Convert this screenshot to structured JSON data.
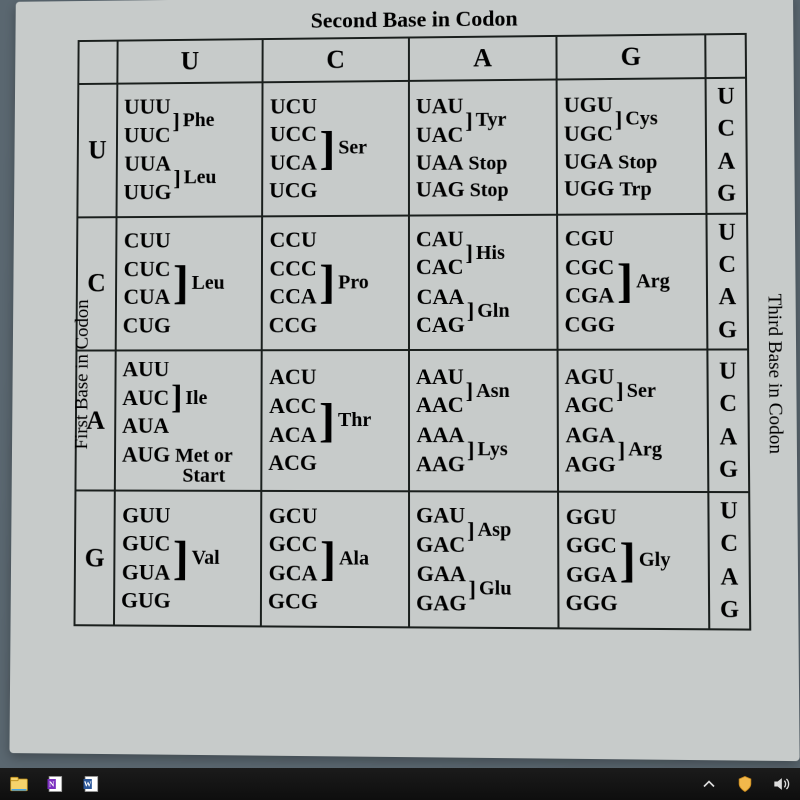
{
  "titles": {
    "top": "Second Base in Codon",
    "left": "First Base in Codon",
    "right": "Third Base in Codon"
  },
  "col_headers": [
    "U",
    "C",
    "A",
    "G"
  ],
  "row_headers": [
    "U",
    "C",
    "A",
    "G"
  ],
  "third_base": [
    "U",
    "C",
    "A",
    "G"
  ],
  "table_type": "genetic_codon_table",
  "colors": {
    "page_bg": "#c7cbca",
    "desktop_bg": "#5a6770",
    "border": "#1a1f1d",
    "text": "#000000",
    "taskbar": "#111111"
  },
  "font": {
    "family": "Times New Roman",
    "header_size_pt": 20,
    "codon_size_pt": 16,
    "title_size_pt": 16
  },
  "cells": {
    "U": {
      "U": {
        "groups": [
          {
            "codons": [
              "UUU",
              "UUC"
            ],
            "amino": "Phe"
          },
          {
            "codons": [
              "UUA",
              "UUG"
            ],
            "amino": "Leu"
          }
        ]
      },
      "C": {
        "groups": [
          {
            "codons": [
              "UCU",
              "UCC",
              "UCA",
              "UCG"
            ],
            "amino": "Ser"
          }
        ]
      },
      "A": {
        "groups": [
          {
            "codons": [
              "UAU",
              "UAC"
            ],
            "amino": "Tyr"
          }
        ],
        "lines": [
          {
            "codon": "UAA",
            "amino": "Stop"
          },
          {
            "codon": "UAG",
            "amino": "Stop"
          }
        ]
      },
      "G": {
        "groups": [
          {
            "codons": [
              "UGU",
              "UGC"
            ],
            "amino": "Cys"
          }
        ],
        "lines": [
          {
            "codon": "UGA",
            "amino": "Stop"
          },
          {
            "codon": "UGG",
            "amino": "Trp"
          }
        ]
      }
    },
    "C": {
      "U": {
        "groups": [
          {
            "codons": [
              "CUU",
              "CUC",
              "CUA",
              "CUG"
            ],
            "amino": "Leu"
          }
        ]
      },
      "C": {
        "groups": [
          {
            "codons": [
              "CCU",
              "CCC",
              "CCA",
              "CCG"
            ],
            "amino": "Pro"
          }
        ]
      },
      "A": {
        "groups": [
          {
            "codons": [
              "CAU",
              "CAC"
            ],
            "amino": "His"
          },
          {
            "codons": [
              "CAA",
              "CAG"
            ],
            "amino": "Gln"
          }
        ]
      },
      "G": {
        "groups": [
          {
            "codons": [
              "CGU",
              "CGC",
              "CGA",
              "CGG"
            ],
            "amino": "Arg"
          }
        ]
      }
    },
    "A": {
      "U": {
        "groups": [
          {
            "codons": [
              "AUU",
              "AUC",
              "AUA"
            ],
            "amino": "Ile"
          }
        ],
        "lines": [
          {
            "codon": "AUG",
            "amino": "Met or Start",
            "small": true
          }
        ]
      },
      "C": {
        "groups": [
          {
            "codons": [
              "ACU",
              "ACC",
              "ACA",
              "ACG"
            ],
            "amino": "Thr"
          }
        ]
      },
      "A": {
        "groups": [
          {
            "codons": [
              "AAU",
              "AAC"
            ],
            "amino": "Asn"
          },
          {
            "codons": [
              "AAA",
              "AAG"
            ],
            "amino": "Lys"
          }
        ]
      },
      "G": {
        "groups": [
          {
            "codons": [
              "AGU",
              "AGC"
            ],
            "amino": "Ser"
          },
          {
            "codons": [
              "AGA",
              "AGG"
            ],
            "amino": "Arg"
          }
        ]
      }
    },
    "G": {
      "U": {
        "groups": [
          {
            "codons": [
              "GUU",
              "GUC",
              "GUA",
              "GUG"
            ],
            "amino": "Val"
          }
        ]
      },
      "C": {
        "groups": [
          {
            "codons": [
              "GCU",
              "GCC",
              "GCA",
              "GCG"
            ],
            "amino": "Ala"
          }
        ]
      },
      "A": {
        "groups": [
          {
            "codons": [
              "GAU",
              "GAC"
            ],
            "amino": "Asp"
          },
          {
            "codons": [
              "GAA",
              "GAG"
            ],
            "amino": "Glu"
          }
        ]
      },
      "G": {
        "groups": [
          {
            "codons": [
              "GGU",
              "GGC",
              "GGA",
              "GGG"
            ],
            "amino": "Gly"
          }
        ]
      }
    }
  },
  "taskbar": {
    "show_up": "⌃",
    "items": [
      "file-explorer",
      "onenote",
      "word"
    ],
    "tray": [
      "chevron-up",
      "security",
      "volume"
    ]
  }
}
